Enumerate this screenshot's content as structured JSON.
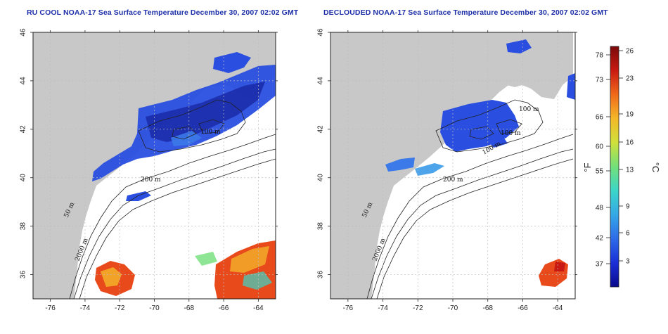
{
  "titles": {
    "left": "RU COOL NOAA-17 Sea Surface Temperature December 30, 2007 02:02 GMT",
    "right": "DECLOUDED NOAA-17 Sea Surface Temperature December 30, 2007 02:02 GMT"
  },
  "axes": {
    "lat_ticks": [
      "36",
      "38",
      "40",
      "42",
      "44",
      "46"
    ],
    "lon_ticks": [
      "-76",
      "-74",
      "-72",
      "-70",
      "-68",
      "-66",
      "-64"
    ],
    "lat_range": [
      35,
      46
    ],
    "lon_range": [
      -77,
      -63
    ]
  },
  "contours": {
    "left": [
      "50 m",
      "200 m",
      "2000 m",
      "100 m"
    ],
    "right": [
      "50 m",
      "200 m",
      "2000 m",
      "100 m",
      "100 m",
      "100 m"
    ]
  },
  "colorbar": {
    "fahrenheit_label": "°F",
    "celsius_label": "°C",
    "fahrenheit_ticks": [
      "37",
      "42",
      "48",
      "55",
      "60",
      "66",
      "73",
      "78"
    ],
    "celsius_ticks": [
      "3",
      "6",
      "9",
      "13",
      "16",
      "19",
      "23",
      "26"
    ],
    "colors": [
      "#0a0a8c",
      "#1a2fd6",
      "#2d6be8",
      "#35a8e8",
      "#3cd6c8",
      "#72e07a",
      "#cfe03a",
      "#f4b82a",
      "#f06a1a",
      "#c81a12",
      "#7a0a0a"
    ]
  },
  "colors": {
    "land": "#c8c8c8",
    "ocean": "#ffffff",
    "grid": "#bdbdbd",
    "cold_sst": "#2a4fe0",
    "warm_sst": "#e84a1c",
    "title": "#1c2fa8"
  }
}
